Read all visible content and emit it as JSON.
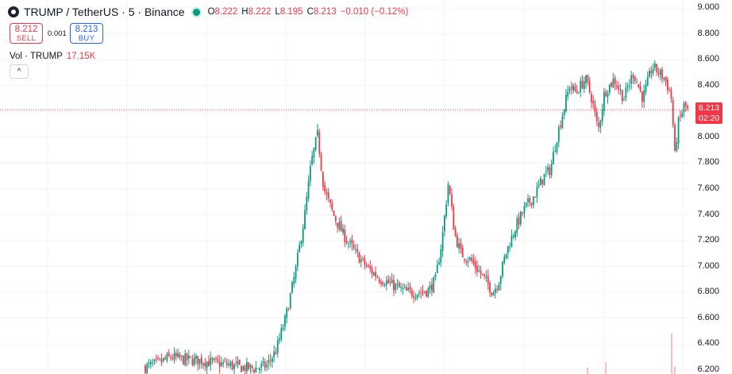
{
  "legend": {
    "symbol": "TRUMP / TetherUS · 5 · Binance",
    "open_key": "O",
    "open": "8.222",
    "high_key": "H",
    "high": "8.222",
    "low_key": "L",
    "low": "8.195",
    "close_key": "C",
    "close": "8.213",
    "change": "−0.010 (−0.12%)"
  },
  "trade": {
    "sell_price": "8.212",
    "sell_label": "SELL",
    "spread": "0.001",
    "buy_price": "8.213",
    "buy_label": "BUY"
  },
  "volume": {
    "label": "Vol · TRUMP",
    "value": "17.15K"
  },
  "collapse_icon": "chevron-up-icon",
  "price_tag": {
    "price": "8.213",
    "countdown": "02:20"
  },
  "colors": {
    "up": "#089981",
    "down": "#f23645",
    "accent": "#2962ff"
  },
  "chart_data": {
    "type": "candlestick",
    "y_ticks": [
      "9.000",
      "8.800",
      "8.600",
      "8.400",
      "8.200",
      "8.000",
      "7.800",
      "7.600",
      "7.400",
      "7.200",
      "7.000",
      "6.800",
      "6.600",
      "6.400",
      "6.200"
    ],
    "ylim": [
      6.18,
      9.02
    ],
    "last_price": 8.213,
    "grid": true,
    "close_path": [
      [
        0,
        6.22
      ],
      [
        4,
        6.25
      ],
      [
        8,
        6.3
      ],
      [
        12,
        6.28
      ],
      [
        18,
        6.27
      ],
      [
        22,
        6.25
      ],
      [
        26,
        6.24
      ],
      [
        30,
        6.22
      ],
      [
        34,
        6.21
      ],
      [
        38,
        6.23
      ],
      [
        41,
        6.35
      ],
      [
        44,
        6.6
      ],
      [
        47,
        6.95
      ],
      [
        50,
        7.4
      ],
      [
        52,
        7.8
      ],
      [
        54,
        8.02
      ],
      [
        56,
        7.6
      ],
      [
        59,
        7.4
      ],
      [
        62,
        7.25
      ],
      [
        66,
        7.1
      ],
      [
        70,
        6.98
      ],
      [
        74,
        6.9
      ],
      [
        78,
        6.85
      ],
      [
        82,
        6.8
      ],
      [
        86,
        6.8
      ],
      [
        89,
        6.82
      ],
      [
        91,
        6.9
      ],
      [
        93,
        7.2
      ],
      [
        95,
        7.65
      ],
      [
        97,
        7.25
      ],
      [
        99,
        7.1
      ],
      [
        102,
        7.05
      ],
      [
        105,
        6.95
      ],
      [
        107,
        6.88
      ],
      [
        109,
        6.8
      ],
      [
        111,
        6.9
      ],
      [
        113,
        7.1
      ],
      [
        116,
        7.3
      ],
      [
        119,
        7.45
      ],
      [
        122,
        7.55
      ],
      [
        125,
        7.7
      ],
      [
        127,
        7.75
      ],
      [
        129,
        8.0
      ],
      [
        131,
        8.2
      ],
      [
        133,
        8.4
      ],
      [
        135,
        8.35
      ],
      [
        138,
        8.45
      ],
      [
        140,
        8.3
      ],
      [
        142,
        8.05
      ],
      [
        144,
        8.35
      ],
      [
        147,
        8.45
      ],
      [
        150,
        8.3
      ],
      [
        153,
        8.5
      ],
      [
        156,
        8.3
      ],
      [
        159,
        8.55
      ],
      [
        161,
        8.5
      ],
      [
        163,
        8.45
      ],
      [
        165,
        8.3
      ],
      [
        166,
        7.85
      ],
      [
        167,
        8.1
      ],
      [
        169,
        8.25
      ],
      [
        170,
        8.21
      ]
    ]
  }
}
